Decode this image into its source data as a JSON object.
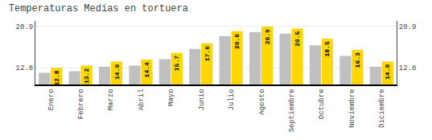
{
  "chart_data": {
    "type": "bar",
    "title": "Temperaturas Medias en tortuera",
    "categories": [
      "Enero",
      "Febrero",
      "Marzo",
      "Abril",
      "Mayo",
      "Junio",
      "Julio",
      "Agosto",
      "Septiembre",
      "Octubre",
      "Noviembre",
      "Diciembre"
    ],
    "series": [
      {
        "color": "#C0C0C0",
        "values": [
          11.8,
          12.1,
          13.0,
          13.2,
          14.5,
          16.5,
          19.0,
          19.8,
          19.5,
          17.2,
          15.1,
          13.0
        ]
      },
      {
        "color": "#FFD700",
        "values": [
          12.8,
          13.2,
          14.0,
          14.4,
          15.7,
          17.6,
          20.0,
          20.9,
          20.5,
          18.5,
          16.3,
          14.0
        ],
        "data_labels": true,
        "value_labels": [
          "12.8",
          "13.2",
          "14.0",
          "14.4",
          "15.7",
          "17.6",
          "20.0",
          "20.9",
          "20.5",
          "18.5",
          "16.3",
          "14.0"
        ]
      }
    ],
    "ylim": [
      9.5,
      22.0
    ],
    "yticks": [
      12.8,
      20.9
    ],
    "y2lim": [
      9.5,
      22.0
    ],
    "y2ticks": [
      12.8,
      20.9
    ],
    "grid": true
  }
}
